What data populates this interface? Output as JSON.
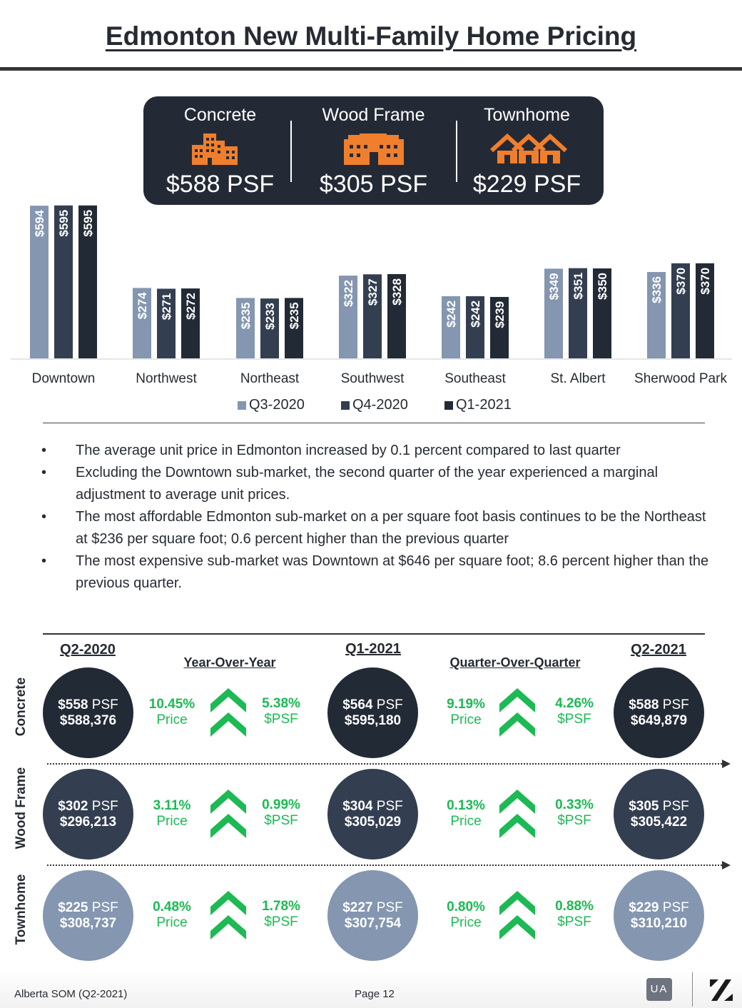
{
  "title": "Edmonton New Multi-Family Home Pricing",
  "banner": {
    "items": [
      {
        "label": "Concrete",
        "value": "$588 PSF",
        "icon": "apartment-buildings-icon"
      },
      {
        "label": "Wood Frame",
        "value": "$305 PSF",
        "icon": "low-rise-building-icon"
      },
      {
        "label": "Townhome",
        "value": "$229 PSF",
        "icon": "townhouses-icon"
      }
    ],
    "icon_color": "#f07f2d"
  },
  "chart_data": {
    "type": "bar",
    "categories": [
      "Downtown",
      "Northwest",
      "Northeast",
      "Southwest",
      "Southeast",
      "St. Albert",
      "Sherwood Park"
    ],
    "series": [
      {
        "name": "Q3-2020",
        "color": "#8496b0",
        "values": [
          594,
          274,
          235,
          322,
          242,
          349,
          336
        ],
        "labels": [
          "$594",
          "$274",
          "$235",
          "$322",
          "$242",
          "$349",
          "$336"
        ]
      },
      {
        "name": "Q4-2020",
        "color": "#333f50",
        "values": [
          595,
          271,
          233,
          327,
          242,
          351,
          370
        ],
        "labels": [
          "$595",
          "$271",
          "$233",
          "$327",
          "$242",
          "$351",
          "$370"
        ]
      },
      {
        "name": "Q1-2021",
        "color": "#222a35",
        "values": [
          595,
          272,
          235,
          328,
          239,
          350,
          370
        ],
        "labels": [
          "$595",
          "$272",
          "$235",
          "$328",
          "$239",
          "$350",
          "$370"
        ]
      }
    ],
    "ylim": [
      0,
      600
    ],
    "legend": "bottom"
  },
  "bullets": [
    "The average unit price in Edmonton increased by 0.1 percent compared to last quarter",
    "Excluding the Downtown sub-market, the second quarter of the year experienced a marginal adjustment to average unit prices.",
    "The most affordable Edmonton sub-market on a per square foot basis continues to be the Northeast at $236 per square foot;  0.6 percent higher than the previous quarter",
    "The most expensive sub-market was Downtown at $646 per square foot; 8.6 percent higher than the previous quarter."
  ],
  "bullet_char": "•",
  "comparison": {
    "col_q2_2020": "Q2-2020",
    "col_q1_2021": "Q1-2021",
    "col_q2_2021": "Q2-2021",
    "yoy": "Year-Over-Year",
    "qoq": "Quarter-Over-Quarter",
    "price_label": "Price",
    "psf_label": "$PSF",
    "rows": [
      {
        "label": "Concrete",
        "color": "#222a35",
        "q2_2020": {
          "psf": "$558",
          "price": "$588,376"
        },
        "q1_2021": {
          "psf": "$564",
          "price": "$595,180"
        },
        "q2_2021": {
          "psf": "$588",
          "price": "$649,879"
        },
        "yoy_price": "10.45%",
        "yoy_psf": "5.38%",
        "qoq_price": "9.19%",
        "qoq_psf": "4.26%"
      },
      {
        "label": "Wood Frame",
        "color": "#333f50",
        "q2_2020": {
          "psf": "$302",
          "price": "$296,213"
        },
        "q1_2021": {
          "psf": "$304",
          "price": "$305,029"
        },
        "q2_2021": {
          "psf": "$305",
          "price": "$305,422"
        },
        "yoy_price": "3.11%",
        "yoy_psf": "0.99%",
        "qoq_price": "0.13%",
        "qoq_psf": "0.33%"
      },
      {
        "label": "Townhome",
        "color": "#8496b0",
        "q2_2020": {
          "psf": "$225",
          "price": "$308,737"
        },
        "q1_2021": {
          "psf": "$227",
          "price": "$307,754"
        },
        "q2_2021": {
          "psf": "$229",
          "price": "$310,210"
        },
        "yoy_price": "0.48%",
        "yoy_psf": "1.78%",
        "qoq_price": "0.80%",
        "qoq_psf": "0.88%"
      }
    ],
    "psf_suffix": "PSF",
    "up_color": "#1db954"
  },
  "footer": {
    "left": "Alberta SOM (Q2-2021)",
    "page": "Page 12",
    "badge": "UA"
  }
}
